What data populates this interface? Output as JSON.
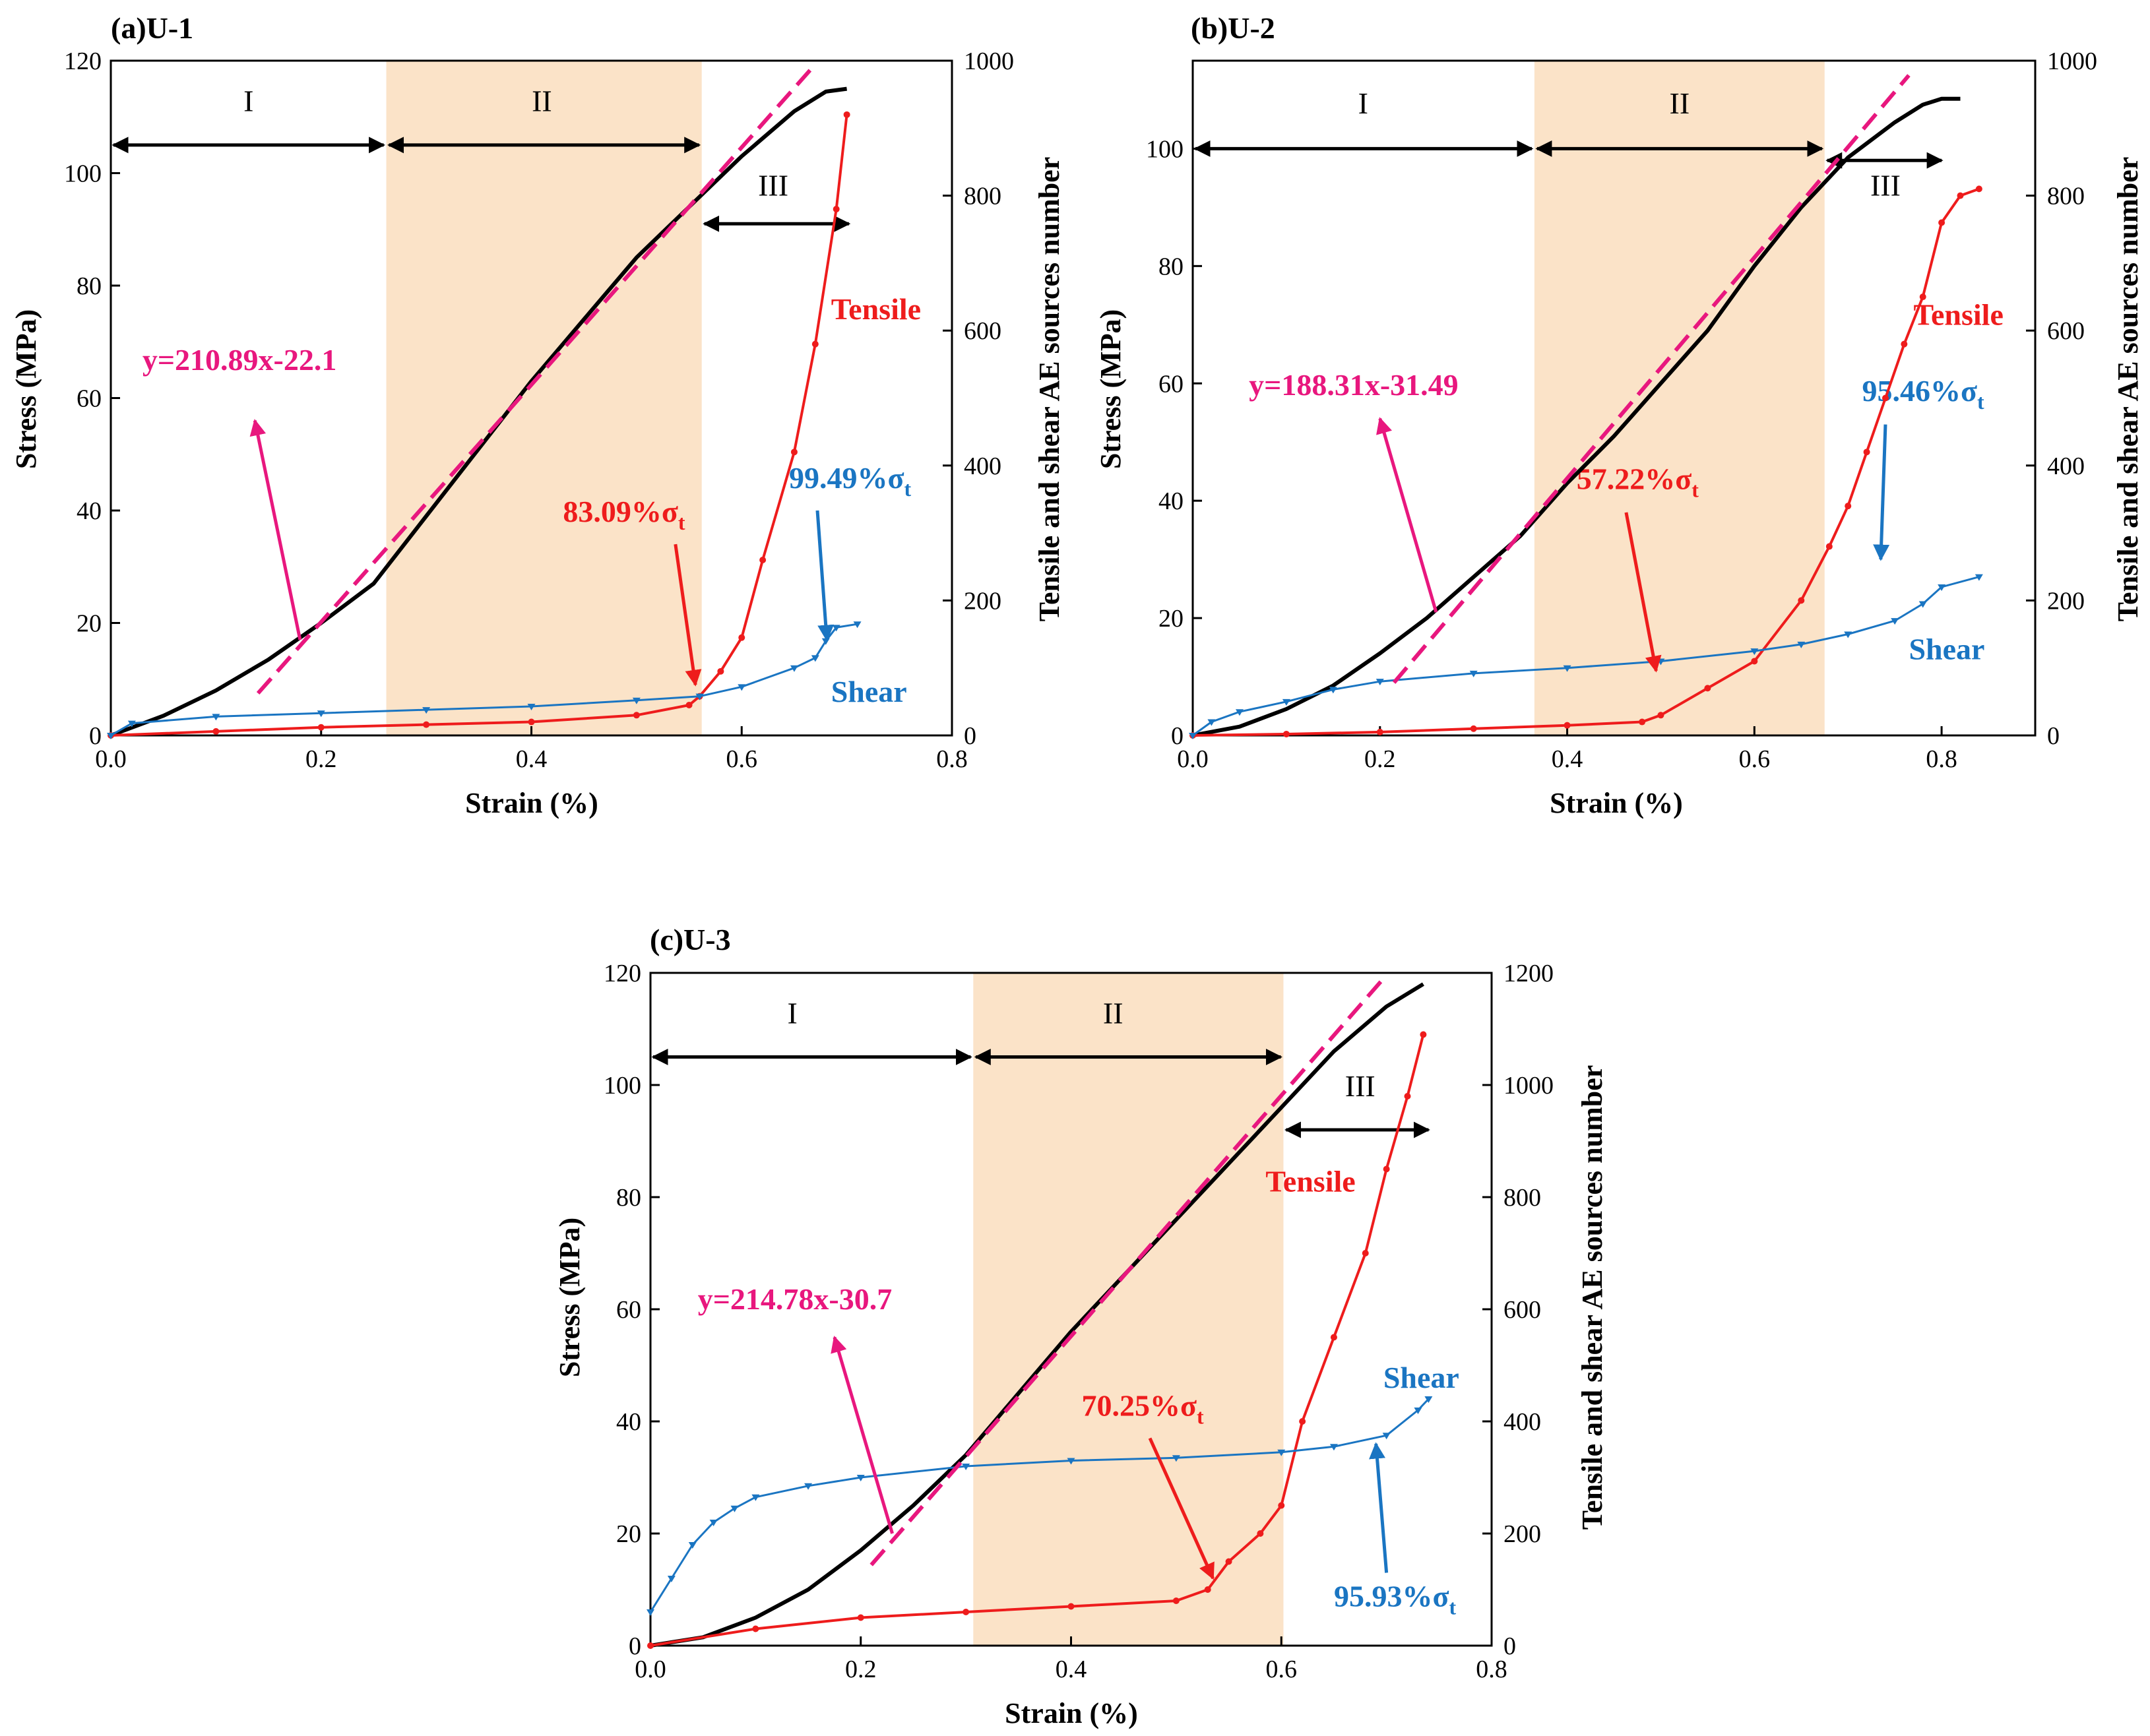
{
  "colors": {
    "stress": "#000000",
    "fit": "#e8177e",
    "tensile": "#ee1c1c",
    "shear": "#1a75c2",
    "stage_band": "#fbe3c8",
    "arrow": "#000000"
  },
  "chart_data": [
    {
      "type": "line",
      "title": "(a)U-1",
      "xlabel": "Strain (%)",
      "ylabel": "Stress (MPa)",
      "y2label": "Tensile and shear AE sources number",
      "xlim": [
        0.0,
        0.8
      ],
      "ylim": [
        0,
        120
      ],
      "y2lim": [
        0,
        1000
      ],
      "xticks": [
        "0.0",
        "0.2",
        "0.4",
        "0.6",
        "0.8"
      ],
      "yticks": [
        "0",
        "20",
        "40",
        "60",
        "80",
        "100",
        "120"
      ],
      "y2ticks": [
        "0",
        "200",
        "400",
        "600",
        "800",
        "1000"
      ],
      "stage_band": [
        0.262,
        0.562
      ],
      "stage_arrow_y": 105,
      "stage_labels": [
        {
          "text": "I",
          "x": 0.131,
          "y": 111
        },
        {
          "text": "II",
          "x": 0.41,
          "y": 111
        },
        {
          "text": "III",
          "x": 0.63,
          "y": 96
        }
      ],
      "stage_arrows": [
        [
          0.0,
          0.262
        ],
        [
          0.262,
          0.562
        ]
      ],
      "stage3_arrow": {
        "x": [
          0.562,
          0.702
        ],
        "y": 91
      },
      "fit_label": "y=210.89x-22.1",
      "fit_line": {
        "x": [
          0.14,
          0.665
        ],
        "y": [
          7.5,
          118.3
        ]
      },
      "fit_label_pos": {
        "x": 0.03,
        "y": 65
      },
      "fit_arrow": {
        "from": [
          0.18,
          17
        ],
        "to": [
          0.137,
          56
        ]
      },
      "series": [
        {
          "name": "Stress",
          "axis": "left",
          "x": [
            0.0,
            0.05,
            0.1,
            0.15,
            0.2,
            0.25,
            0.3,
            0.35,
            0.4,
            0.45,
            0.5,
            0.55,
            0.6,
            0.65,
            0.68,
            0.7
          ],
          "y": [
            0,
            3.5,
            8,
            13.5,
            20,
            27,
            39,
            51,
            63,
            74,
            85,
            94,
            103,
            111,
            114.5,
            115
          ]
        },
        {
          "name": "Tensile",
          "axis": "right",
          "x": [
            0.0,
            0.1,
            0.2,
            0.3,
            0.4,
            0.5,
            0.55,
            0.56,
            0.58,
            0.6,
            0.62,
            0.65,
            0.67,
            0.69,
            0.7
          ],
          "y": [
            0,
            6,
            12,
            16,
            20,
            30,
            45,
            58,
            95,
            145,
            260,
            420,
            580,
            780,
            920
          ]
        },
        {
          "name": "Shear",
          "axis": "right",
          "x": [
            0.0,
            0.02,
            0.1,
            0.2,
            0.3,
            0.4,
            0.5,
            0.56,
            0.6,
            0.65,
            0.67,
            0.68,
            0.69,
            0.71
          ],
          "y": [
            0,
            18,
            28,
            33,
            38,
            43,
            52,
            58,
            72,
            100,
            115,
            140,
            160,
            165
          ]
        }
      ],
      "tensile_label": "Tensile",
      "tensile_label_pos": {
        "x": 0.685,
        "y": 74
      },
      "shear_label": "Shear",
      "shear_label_pos": {
        "x": 0.685,
        "y": 6
      },
      "tensile_pct_main": "83.09%σ",
      "tensile_pct_sub": "t",
      "tensile_pct_pos": {
        "x": 0.43,
        "y": 38
      },
      "tensile_pct_arrow": {
        "from": [
          0.537,
          34
        ],
        "to": [
          0.556,
          9
        ]
      },
      "shear_pct_main": "99.49%σ",
      "shear_pct_sub": "t",
      "shear_pct_pos": {
        "x": 0.645,
        "y": 44
      },
      "shear_pct_arrow": {
        "from": [
          0.672,
          40
        ],
        "to": [
          0.681,
          17
        ]
      }
    },
    {
      "type": "line",
      "title": "(b)U-2",
      "xlabel": "Strain (%)",
      "ylabel": "Stress (MPa)",
      "y2label": "Tensile and shear AE sources number",
      "xlim": [
        0.0,
        0.9
      ],
      "ylim": [
        0,
        115
      ],
      "y2lim": [
        0,
        1000
      ],
      "xticks": [
        "0.0",
        "0.2",
        "0.4",
        "0.6",
        "0.8"
      ],
      "yticks": [
        "0",
        "20",
        "40",
        "60",
        "80",
        "100"
      ],
      "y2ticks": [
        "0",
        "200",
        "400",
        "600",
        "800",
        "1000"
      ],
      "stage_band": [
        0.365,
        0.675
      ],
      "stage_arrow_y": 100,
      "stage_labels": [
        {
          "text": "I",
          "x": 0.182,
          "y": 106
        },
        {
          "text": "II",
          "x": 0.52,
          "y": 106
        },
        {
          "text": "III",
          "x": 0.74,
          "y": 92
        }
      ],
      "stage_arrows": [
        [
          0.0,
          0.365
        ],
        [
          0.365,
          0.675
        ]
      ],
      "stage3_arrow": {
        "x": [
          0.675,
          0.8
        ],
        "y": 98
      },
      "fit_label": "y=188.31x-31.49",
      "fit_line": {
        "x": [
          0.215,
          0.765
        ],
        "y": [
          9,
          112.5
        ]
      },
      "fit_label_pos": {
        "x": 0.06,
        "y": 58
      },
      "fit_arrow": {
        "from": [
          0.26,
          21
        ],
        "to": [
          0.2,
          54
        ]
      },
      "series": [
        {
          "name": "Stress",
          "axis": "left",
          "x": [
            0.0,
            0.05,
            0.1,
            0.15,
            0.2,
            0.25,
            0.3,
            0.35,
            0.4,
            0.45,
            0.5,
            0.55,
            0.6,
            0.65,
            0.7,
            0.75,
            0.78,
            0.8,
            0.82
          ],
          "y": [
            0,
            1.5,
            4.5,
            8.5,
            14,
            20,
            27,
            34,
            43,
            51,
            60,
            69,
            80,
            90,
            98.5,
            104.5,
            107.5,
            108.5,
            108.5
          ]
        },
        {
          "name": "Tensile",
          "axis": "right",
          "x": [
            0.0,
            0.1,
            0.2,
            0.3,
            0.4,
            0.48,
            0.5,
            0.55,
            0.6,
            0.65,
            0.68,
            0.7,
            0.72,
            0.74,
            0.76,
            0.78,
            0.8,
            0.82,
            0.84
          ],
          "y": [
            0,
            2,
            5,
            10,
            15,
            20,
            30,
            70,
            110,
            200,
            280,
            340,
            420,
            500,
            580,
            650,
            760,
            800,
            810
          ]
        },
        {
          "name": "Shear",
          "axis": "right",
          "x": [
            0.0,
            0.02,
            0.05,
            0.1,
            0.15,
            0.2,
            0.3,
            0.4,
            0.5,
            0.6,
            0.65,
            0.7,
            0.75,
            0.78,
            0.8,
            0.84
          ],
          "y": [
            0,
            20,
            35,
            50,
            68,
            80,
            92,
            100,
            110,
            125,
            135,
            150,
            170,
            195,
            220,
            235
          ]
        }
      ],
      "tensile_label": "Tensile",
      "tensile_label_pos": {
        "x": 0.77,
        "y": 70
      },
      "shear_label": "Shear",
      "shear_label_pos": {
        "x": 0.765,
        "y": 13
      },
      "tensile_pct_main": "57.22%σ",
      "tensile_pct_sub": "t",
      "tensile_pct_pos": {
        "x": 0.41,
        "y": 42
      },
      "tensile_pct_arrow": {
        "from": [
          0.463,
          38
        ],
        "to": [
          0.495,
          11
        ]
      },
      "shear_pct_main": "95.46%σ",
      "shear_pct_sub": "t",
      "shear_pct_pos": {
        "x": 0.715,
        "y": 57
      },
      "shear_pct_arrow": {
        "from": [
          0.74,
          53
        ],
        "to": [
          0.735,
          30
        ]
      }
    },
    {
      "type": "line",
      "title": "(c)U-3",
      "xlabel": "Strain (%)",
      "ylabel": "Stress (MPa)",
      "y2label": "Tensile and shear AE sources number",
      "xlim": [
        0.0,
        0.8
      ],
      "ylim": [
        0,
        120
      ],
      "y2lim": [
        0,
        1200
      ],
      "xticks": [
        "0.0",
        "0.2",
        "0.4",
        "0.6",
        "0.8"
      ],
      "yticks": [
        "0",
        "20",
        "40",
        "60",
        "80",
        "100",
        "120"
      ],
      "y2ticks": [
        "0",
        "200",
        "400",
        "600",
        "800",
        "1000",
        "1200"
      ],
      "stage_band": [
        0.307,
        0.602
      ],
      "stage_arrow_y": 105,
      "stage_labels": [
        {
          "text": "I",
          "x": 0.135,
          "y": 111
        },
        {
          "text": "II",
          "x": 0.44,
          "y": 111
        },
        {
          "text": "III",
          "x": 0.675,
          "y": 98
        }
      ],
      "stage_arrows": [
        [
          0.0,
          0.307
        ],
        [
          0.307,
          0.602
        ]
      ],
      "stage3_arrow": {
        "x": [
          0.602,
          0.74
        ],
        "y": 92
      },
      "fit_label": "y=214.78x-30.7",
      "fit_line": {
        "x": [
          0.21,
          0.7
        ],
        "y": [
          14.4,
          119.6
        ]
      },
      "fit_label_pos": {
        "x": 0.045,
        "y": 60
      },
      "fit_arrow": {
        "from": [
          0.23,
          20
        ],
        "to": [
          0.175,
          55
        ]
      },
      "series": [
        {
          "name": "Stress",
          "axis": "left",
          "x": [
            0.0,
            0.05,
            0.1,
            0.15,
            0.2,
            0.25,
            0.3,
            0.35,
            0.4,
            0.45,
            0.5,
            0.55,
            0.6,
            0.65,
            0.7,
            0.735
          ],
          "y": [
            0,
            1.5,
            5,
            10,
            17,
            25,
            34,
            45,
            56,
            66,
            76,
            86,
            96,
            106,
            114,
            118
          ]
        },
        {
          "name": "Tensile",
          "axis": "right",
          "x": [
            0.0,
            0.1,
            0.2,
            0.3,
            0.4,
            0.5,
            0.53,
            0.55,
            0.58,
            0.6,
            0.62,
            0.65,
            0.68,
            0.7,
            0.72,
            0.735
          ],
          "y": [
            0,
            30,
            50,
            60,
            70,
            80,
            100,
            150,
            200,
            250,
            400,
            550,
            700,
            850,
            980,
            1090
          ]
        },
        {
          "name": "Shear",
          "axis": "right",
          "x": [
            0.0,
            0.02,
            0.04,
            0.06,
            0.08,
            0.1,
            0.15,
            0.2,
            0.3,
            0.4,
            0.5,
            0.6,
            0.65,
            0.7,
            0.73,
            0.74
          ],
          "y": [
            60,
            120,
            180,
            220,
            245,
            265,
            285,
            300,
            320,
            330,
            335,
            345,
            355,
            375,
            420,
            440
          ]
        }
      ],
      "tensile_label": "Tensile",
      "tensile_label_pos": {
        "x": 0.585,
        "y": 81
      },
      "shear_label": "Shear",
      "shear_label_pos": {
        "x": 0.697,
        "y": 46
      },
      "tensile_pct_main": "70.25%σ",
      "tensile_pct_sub": "t",
      "tensile_pct_pos": {
        "x": 0.41,
        "y": 41
      },
      "tensile_pct_arrow": {
        "from": [
          0.475,
          37
        ],
        "to": [
          0.535,
          12
        ]
      },
      "shear_pct_main": "95.93%σ",
      "shear_pct_sub": "t",
      "shear_pct_pos": {
        "x": 0.65,
        "y": 7
      },
      "shear_pct_arrow": {
        "from": [
          0.7,
          13
        ],
        "to": [
          0.69,
          36
        ]
      }
    }
  ]
}
